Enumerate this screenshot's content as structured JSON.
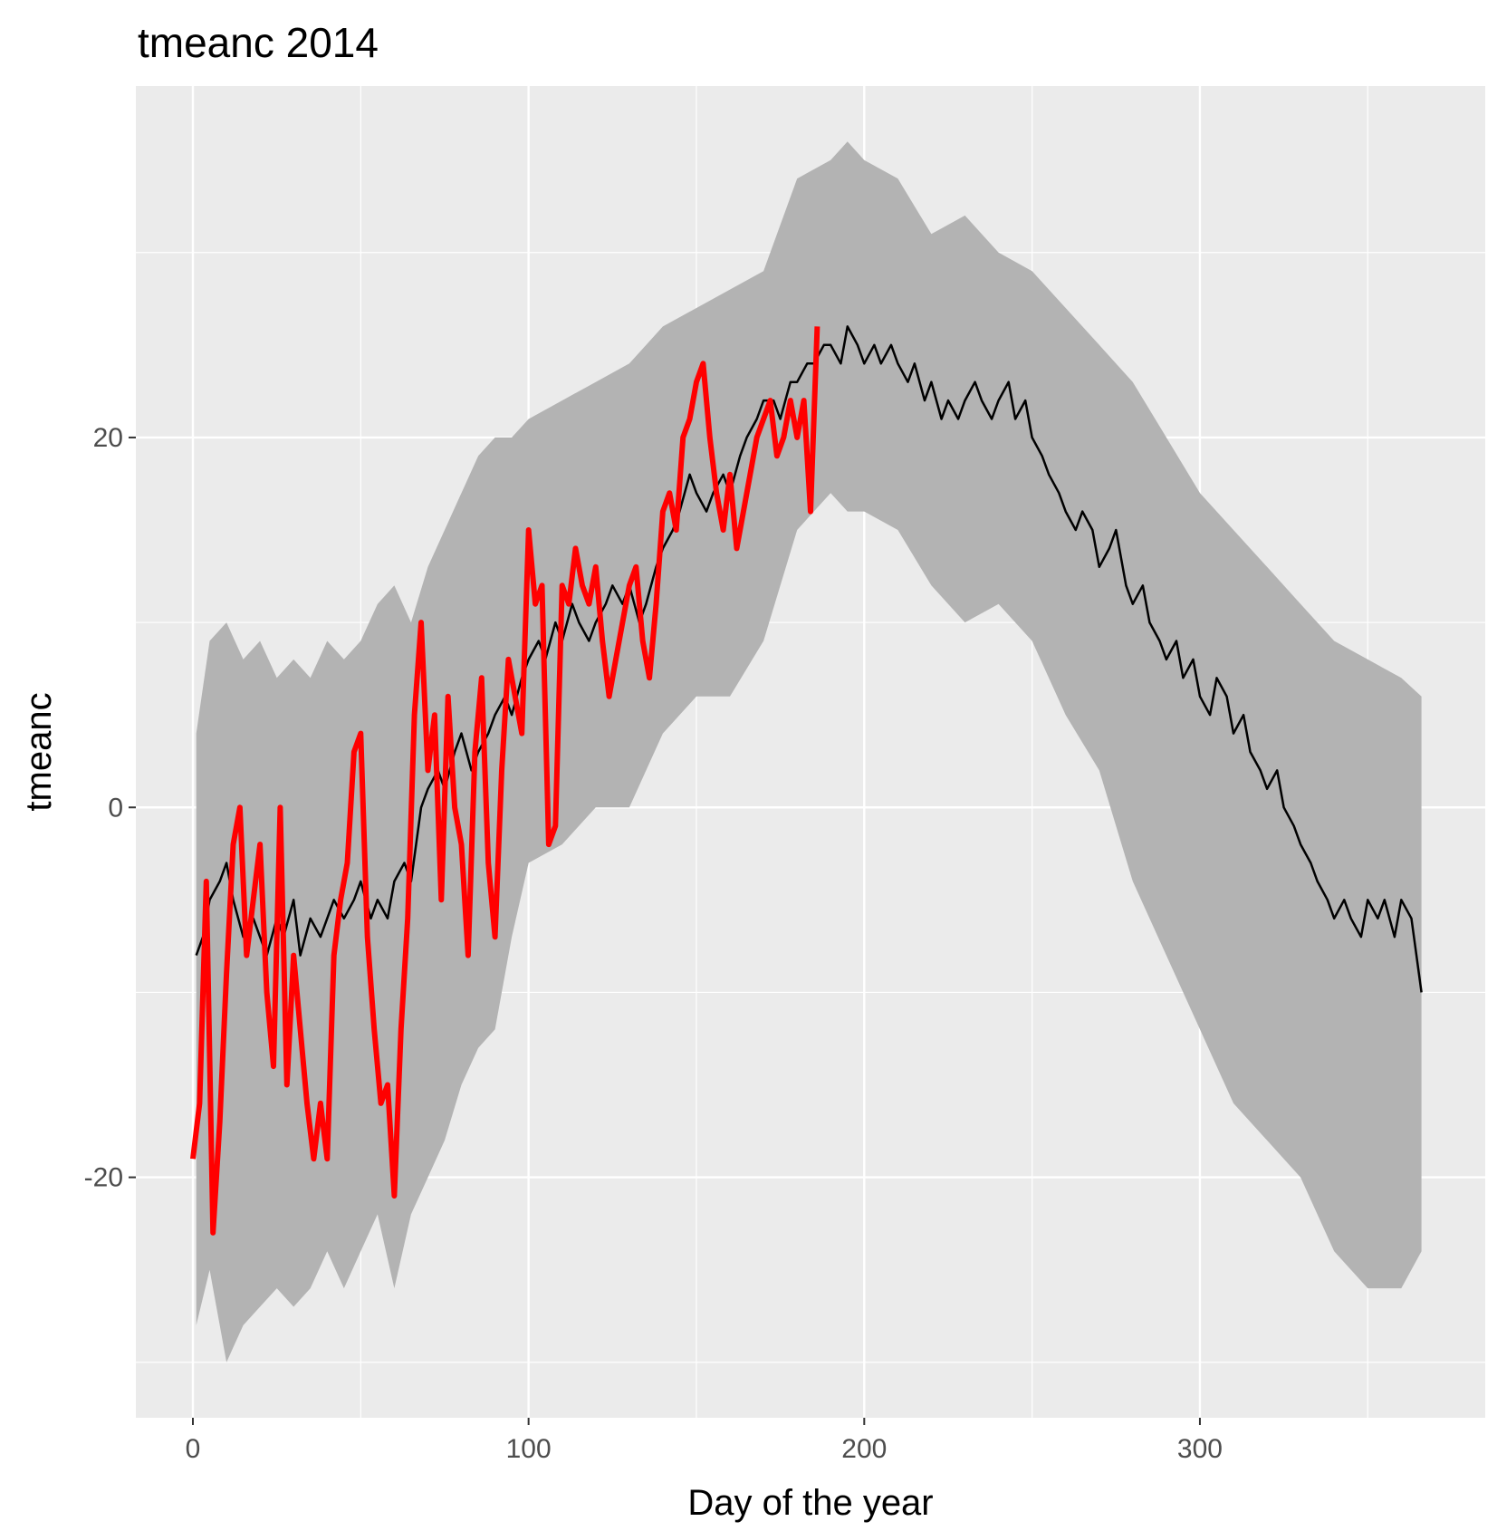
{
  "chart_data": {
    "type": "line",
    "title": "tmeanc 2014",
    "xlabel": "Day of the year",
    "ylabel": "tmeanc",
    "xlim": [
      -17,
      385
    ],
    "ylim": [
      -33,
      39
    ],
    "x_ticks": [
      0,
      100,
      200,
      300
    ],
    "x_tick_labels": [
      "0",
      "100",
      "200",
      "300"
    ],
    "y_ticks": [
      -20,
      0,
      20
    ],
    "y_tick_labels": [
      "-20",
      "0",
      "20"
    ],
    "y_minor_gridlines": [
      -30,
      -10,
      10,
      30
    ],
    "x_minor_gridlines": [
      50,
      150,
      250,
      350
    ],
    "grid": true,
    "background": "#ebebeb",
    "gridline_color": "#ffffff",
    "legend": "none",
    "ribbon": {
      "fill": "#b3b3b3",
      "x": [
        1,
        5,
        10,
        15,
        20,
        25,
        30,
        35,
        40,
        45,
        50,
        55,
        60,
        65,
        70,
        75,
        80,
        85,
        90,
        95,
        100,
        110,
        120,
        130,
        140,
        150,
        160,
        170,
        180,
        190,
        195,
        200,
        210,
        220,
        230,
        240,
        250,
        260,
        270,
        280,
        290,
        300,
        310,
        320,
        330,
        340,
        350,
        360,
        366
      ],
      "upper": [
        4,
        9,
        10,
        8,
        9,
        7,
        8,
        7,
        9,
        8,
        9,
        11,
        12,
        10,
        13,
        15,
        17,
        19,
        20,
        20,
        21,
        22,
        23,
        24,
        26,
        27,
        28,
        29,
        34,
        35,
        36,
        35,
        34,
        31,
        32,
        30,
        29,
        27,
        25,
        23,
        20,
        17,
        15,
        13,
        11,
        9,
        8,
        7,
        6
      ],
      "lower": [
        -28,
        -25,
        -30,
        -28,
        -27,
        -26,
        -27,
        -26,
        -24,
        -26,
        -24,
        -22,
        -26,
        -22,
        -20,
        -18,
        -15,
        -13,
        -12,
        -7,
        -3,
        -2,
        0,
        0,
        4,
        6,
        6,
        9,
        15,
        17,
        16,
        16,
        15,
        12,
        10,
        11,
        9,
        5,
        2,
        -4,
        -8,
        -12,
        -16,
        -18,
        -20,
        -24,
        -26,
        -26,
        -24
      ]
    },
    "series": [
      {
        "color": "#000000",
        "x": [
          1,
          3,
          5,
          8,
          10,
          12,
          15,
          18,
          20,
          22,
          25,
          27,
          30,
          32,
          35,
          38,
          40,
          42,
          45,
          48,
          50,
          53,
          55,
          58,
          60,
          63,
          65,
          68,
          70,
          73,
          75,
          78,
          80,
          83,
          85,
          88,
          90,
          93,
          95,
          98,
          100,
          103,
          105,
          108,
          110,
          113,
          115,
          118,
          120,
          123,
          125,
          128,
          130,
          133,
          135,
          138,
          140,
          143,
          145,
          148,
          150,
          153,
          155,
          158,
          160,
          163,
          165,
          168,
          170,
          173,
          175,
          178,
          180,
          183,
          185,
          188,
          190,
          193,
          195,
          198,
          200,
          203,
          205,
          208,
          210,
          213,
          215,
          218,
          220,
          223,
          225,
          228,
          230,
          233,
          235,
          238,
          240,
          243,
          245,
          248,
          250,
          253,
          255,
          258,
          260,
          263,
          265,
          268,
          270,
          273,
          275,
          278,
          280,
          283,
          285,
          288,
          290,
          293,
          295,
          298,
          300,
          303,
          305,
          308,
          310,
          313,
          315,
          318,
          320,
          323,
          325,
          328,
          330,
          333,
          335,
          338,
          340,
          343,
          345,
          348,
          350,
          353,
          355,
          358,
          360,
          363,
          366
        ],
        "y": [
          -8,
          -7,
          -5,
          -4,
          -3,
          -5,
          -7,
          -6,
          -7,
          -8,
          -6,
          -7,
          -5,
          -8,
          -6,
          -7,
          -6,
          -5,
          -6,
          -5,
          -4,
          -6,
          -5,
          -6,
          -4,
          -3,
          -4,
          0,
          1,
          2,
          1,
          3,
          4,
          2,
          3,
          4,
          5,
          6,
          5,
          7,
          8,
          9,
          8,
          10,
          9,
          11,
          10,
          9,
          10,
          11,
          12,
          11,
          12,
          10,
          11,
          13,
          14,
          15,
          16,
          18,
          17,
          16,
          17,
          18,
          17,
          19,
          20,
          21,
          22,
          22,
          21,
          23,
          23,
          24,
          24,
          25,
          25,
          24,
          26,
          25,
          24,
          25,
          24,
          25,
          24,
          23,
          24,
          22,
          23,
          21,
          22,
          21,
          22,
          23,
          22,
          21,
          22,
          23,
          21,
          22,
          20,
          19,
          18,
          17,
          16,
          15,
          16,
          15,
          13,
          14,
          15,
          12,
          11,
          12,
          10,
          9,
          8,
          9,
          7,
          8,
          6,
          5,
          7,
          6,
          4,
          5,
          3,
          2,
          1,
          2,
          0,
          -1,
          -2,
          -3,
          -4,
          -5,
          -6,
          -5,
          -6,
          -7,
          -5,
          -6,
          -5,
          -7,
          -5,
          -6,
          -10
        ]
      },
      {
        "color": "#ff0000",
        "x": [
          0,
          2,
          4,
          6,
          8,
          10,
          12,
          14,
          16,
          18,
          20,
          22,
          24,
          26,
          28,
          30,
          32,
          34,
          36,
          38,
          40,
          42,
          44,
          46,
          48,
          50,
          52,
          54,
          56,
          58,
          60,
          62,
          64,
          66,
          68,
          70,
          72,
          74,
          76,
          78,
          80,
          82,
          84,
          86,
          88,
          90,
          92,
          94,
          96,
          98,
          100,
          102,
          104,
          106,
          108,
          110,
          112,
          114,
          116,
          118,
          120,
          122,
          124,
          126,
          128,
          130,
          132,
          134,
          136,
          138,
          140,
          142,
          144,
          146,
          148,
          150,
          152,
          154,
          156,
          158,
          160,
          162,
          164,
          166,
          168,
          170,
          172,
          174,
          176,
          178,
          180,
          182,
          184,
          186
        ],
        "y": [
          -19,
          -16,
          -4,
          -23,
          -17,
          -9,
          -2,
          0,
          -8,
          -5,
          -2,
          -10,
          -14,
          0,
          -15,
          -8,
          -12,
          -16,
          -19,
          -16,
          -19,
          -8,
          -5,
          -3,
          3,
          4,
          -7,
          -12,
          -16,
          -15,
          -21,
          -12,
          -6,
          5,
          10,
          2,
          5,
          -5,
          6,
          0,
          -2,
          -8,
          3,
          7,
          -3,
          -7,
          2,
          8,
          6,
          4,
          15,
          11,
          12,
          -2,
          -1,
          12,
          11,
          14,
          12,
          11,
          13,
          9,
          6,
          8,
          10,
          12,
          13,
          9,
          7,
          11,
          16,
          17,
          15,
          20,
          21,
          23,
          24,
          20,
          17,
          15,
          18,
          14,
          16,
          18,
          20,
          21,
          22,
          19,
          20,
          22,
          20,
          22,
          16,
          26
        ],
        "stroke_width": 6
      }
    ]
  }
}
